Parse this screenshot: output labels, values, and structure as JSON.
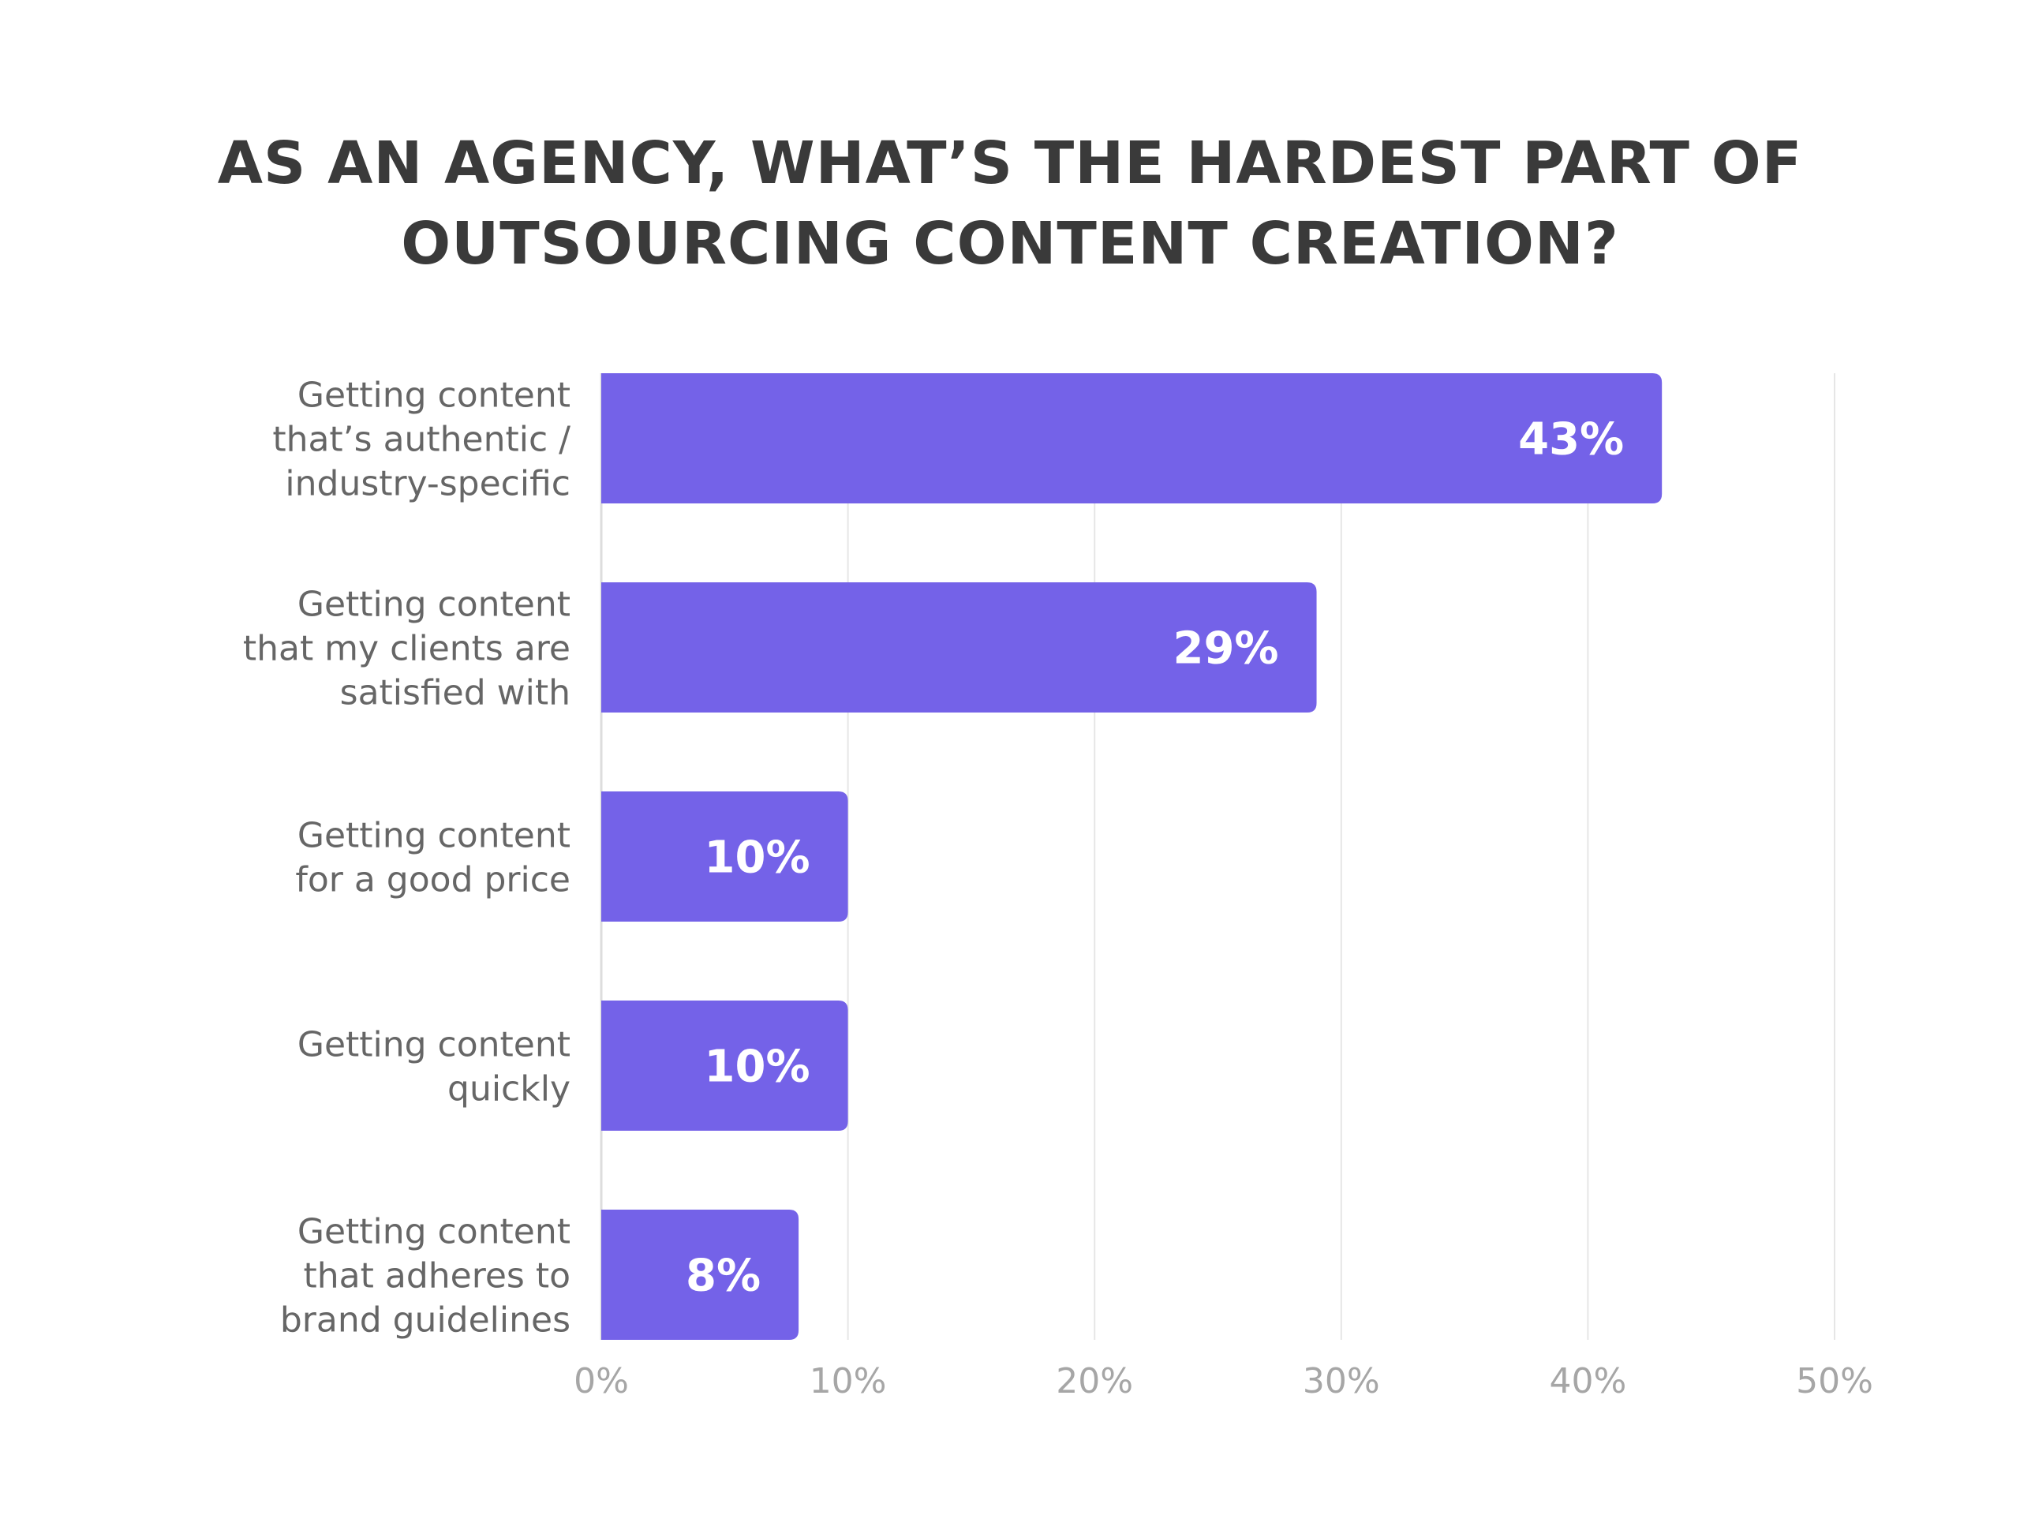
{
  "chart_data": {
    "type": "bar",
    "orientation": "horizontal",
    "title_lines": [
      "AS AN AGENCY, WHAT’S THE HARDEST PART OF",
      "OUTSOURCING CONTENT CREATION?"
    ],
    "categories": [
      [
        "Getting content",
        "that’s authentic /",
        "industry-specific"
      ],
      [
        "Getting content",
        "that my clients are",
        "satisfied with"
      ],
      [
        "Getting content",
        "for a good price"
      ],
      [
        "Getting content",
        "quickly"
      ],
      [
        "Getting content",
        "that adheres to",
        "brand guidelines"
      ]
    ],
    "values": [
      43,
      29,
      10,
      10,
      8
    ],
    "value_labels": [
      "43%",
      "29%",
      "10%",
      "10%",
      "8%"
    ],
    "xlim": [
      0,
      50
    ],
    "xticks": [
      0,
      10,
      20,
      30,
      40,
      50
    ],
    "xtick_labels": [
      "0%",
      "10%",
      "20%",
      "30%",
      "40%",
      "50%"
    ],
    "grid": "vertical",
    "colors": {
      "bar": "#7462e8",
      "grid": "#e6e6e6",
      "axis": "#dddddd"
    }
  }
}
